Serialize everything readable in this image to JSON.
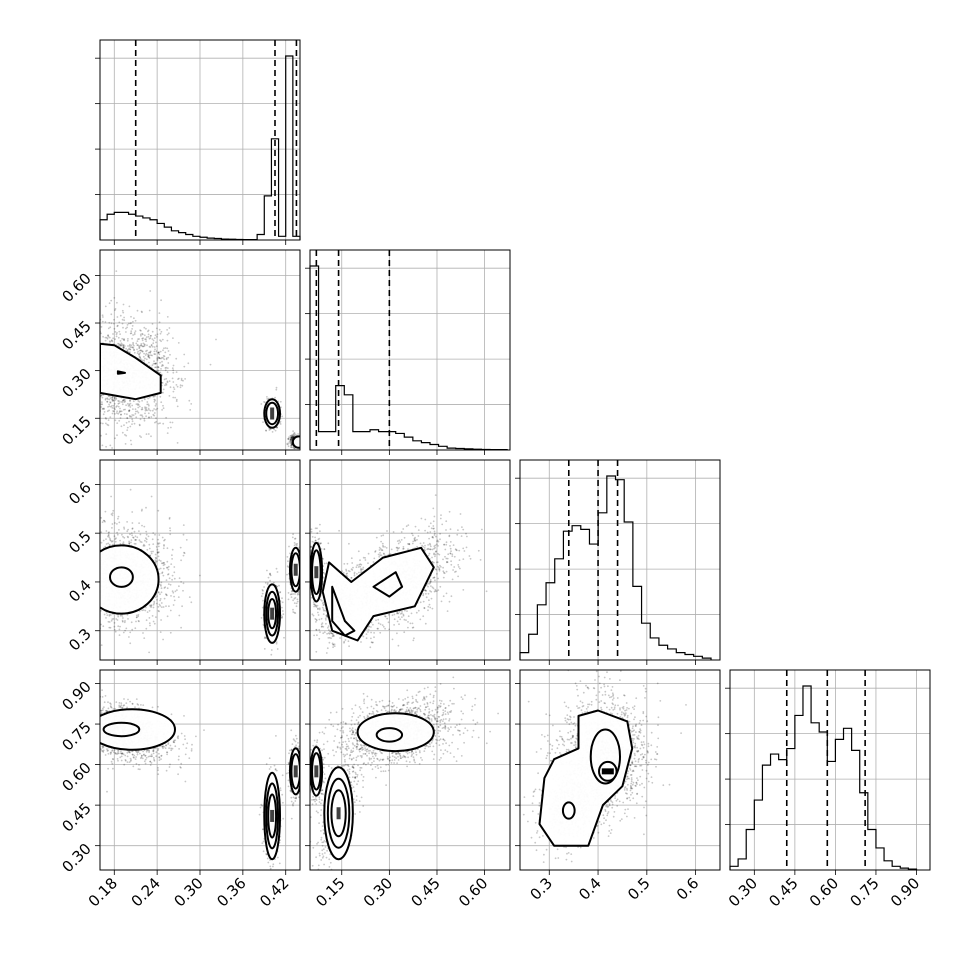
{
  "chart_data": {
    "type": "corner",
    "parameters": [
      {
        "ticks": [
          "0.18",
          "0.24",
          "0.30",
          "0.36",
          "0.42"
        ],
        "range": [
          0.16,
          0.44
        ]
      },
      {
        "ticks": [
          "0.15",
          "0.30",
          "0.45",
          "0.60"
        ],
        "range": [
          0.05,
          0.68
        ]
      },
      {
        "ticks": [
          "0.3",
          "0.4",
          "0.5",
          "0.6"
        ],
        "range": [
          0.24,
          0.65
        ]
      },
      {
        "ticks": [
          "0.30",
          "0.45",
          "0.60",
          "0.75",
          "0.90"
        ],
        "range": [
          0.21,
          0.95
        ]
      }
    ],
    "histograms": [
      {
        "param": 0,
        "bins": [
          0.16,
          0.17,
          0.18,
          0.19,
          0.2,
          0.21,
          0.22,
          0.23,
          0.24,
          0.25,
          0.26,
          0.27,
          0.28,
          0.29,
          0.3,
          0.31,
          0.32,
          0.33,
          0.34,
          0.35,
          0.36,
          0.37,
          0.38,
          0.39,
          0.4,
          0.41,
          0.42,
          0.43,
          0.44
        ],
        "counts": [
          0.11,
          0.14,
          0.15,
          0.15,
          0.14,
          0.13,
          0.12,
          0.11,
          0.09,
          0.07,
          0.05,
          0.04,
          0.03,
          0.02,
          0.015,
          0.01,
          0.008,
          0.005,
          0.004,
          0.003,
          0.002,
          0.002,
          0.03,
          0.24,
          0.55,
          0.02,
          1.0,
          0.02
        ],
        "quantiles": [
          0.21,
          0.405,
          0.435
        ]
      },
      {
        "param": 1,
        "bins": [
          0.05,
          0.077,
          0.104,
          0.131,
          0.158,
          0.185,
          0.212,
          0.239,
          0.266,
          0.293,
          0.32,
          0.347,
          0.374,
          0.401,
          0.428,
          0.455,
          0.482,
          0.509,
          0.536,
          0.563,
          0.59,
          0.617,
          0.644,
          0.671
        ],
        "counts": [
          1.0,
          0.1,
          0.1,
          0.35,
          0.3,
          0.1,
          0.1,
          0.11,
          0.1,
          0.1,
          0.09,
          0.07,
          0.05,
          0.04,
          0.03,
          0.02,
          0.01,
          0.008,
          0.006,
          0.004,
          0.003,
          0.002,
          0.002
        ],
        "quantiles": [
          0.07,
          0.14,
          0.3
        ]
      },
      {
        "param": 2,
        "bins": [
          0.24,
          0.2578,
          0.2756,
          0.2934,
          0.3112,
          0.329,
          0.3468,
          0.3646,
          0.3824,
          0.4002,
          0.418,
          0.4358,
          0.4536,
          0.4714,
          0.4892,
          0.507,
          0.5248,
          0.5426,
          0.5604,
          0.5782,
          0.596,
          0.6138,
          0.6316
        ],
        "counts": [
          0.04,
          0.14,
          0.3,
          0.42,
          0.55,
          0.7,
          0.73,
          0.71,
          0.63,
          0.8,
          1.0,
          0.98,
          0.75,
          0.4,
          0.2,
          0.12,
          0.08,
          0.06,
          0.04,
          0.03,
          0.02,
          0.01
        ],
        "quantiles": [
          0.34,
          0.4,
          0.44
        ]
      },
      {
        "param": 3,
        "bins": [
          0.21,
          0.24,
          0.27,
          0.3,
          0.33,
          0.36,
          0.39,
          0.42,
          0.45,
          0.48,
          0.51,
          0.54,
          0.57,
          0.6,
          0.63,
          0.66,
          0.69,
          0.72,
          0.75,
          0.78,
          0.81,
          0.84,
          0.87,
          0.9
        ],
        "counts": [
          0.02,
          0.06,
          0.22,
          0.38,
          0.57,
          0.63,
          0.6,
          0.66,
          0.84,
          1.0,
          0.8,
          0.75,
          0.59,
          0.71,
          0.77,
          0.65,
          0.42,
          0.22,
          0.12,
          0.05,
          0.02,
          0.01,
          0.005
        ],
        "quantiles": [
          0.42,
          0.57,
          0.71
        ]
      }
    ],
    "scatter_panels": [
      {
        "x": 0,
        "y": 1
      },
      {
        "x": 0,
        "y": 2
      },
      {
        "x": 1,
        "y": 2
      },
      {
        "x": 0,
        "y": 3
      },
      {
        "x": 1,
        "y": 3
      },
      {
        "x": 2,
        "y": 3
      }
    ],
    "grid": true
  }
}
